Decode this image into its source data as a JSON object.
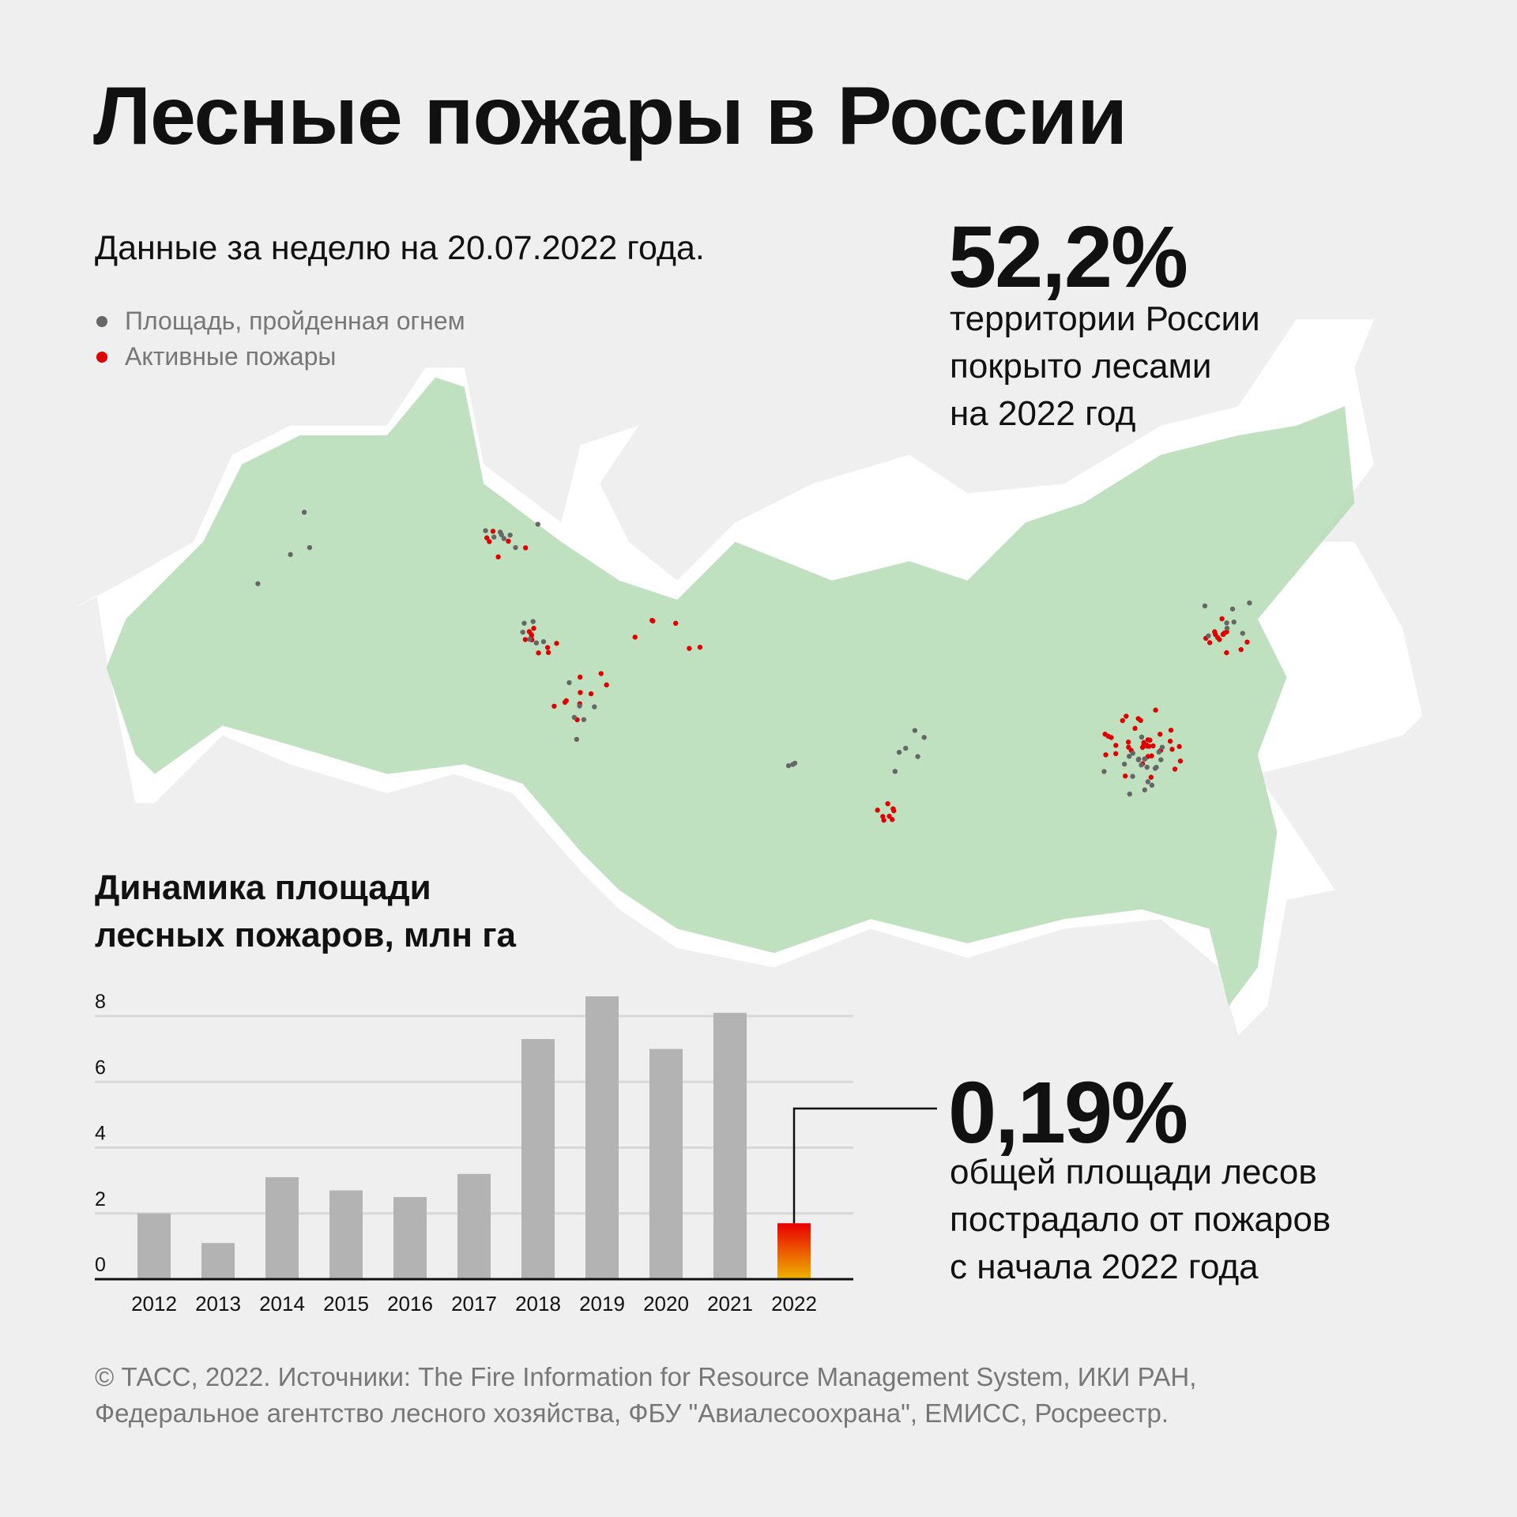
{
  "title": "Лесные пожары в России",
  "subtitle": "Данные за неделю на 20.07.2022 года.",
  "legend": [
    {
      "label": "Площадь, пройденная огнем",
      "color": "#666666"
    },
    {
      "label": "Активные пожары",
      "color": "#e00000"
    }
  ],
  "forest_stat": {
    "value": "52,2%",
    "lines": [
      "территории России",
      "покрыто лесами",
      "на 2022 год"
    ]
  },
  "fire_stat": {
    "value": "0,19%",
    "lines": [
      "общей площади лесов",
      "пострадало от пожаров",
      "с начала 2022 года"
    ]
  },
  "colors": {
    "forest": "#b4dcb4",
    "bar": "#b3b3b3",
    "highlight_top": "#e80000",
    "highlight_bottom": "#f0b400"
  },
  "chart_data": {
    "type": "bar",
    "title": "Динамика площади лесных пожаров, млн га",
    "title_lines": [
      "Динамика площади",
      "лесных пожаров, млн га"
    ],
    "categories": [
      "2012",
      "2013",
      "2014",
      "2015",
      "2016",
      "2017",
      "2018",
      "2019",
      "2020",
      "2021",
      "2022"
    ],
    "values": [
      2.0,
      1.1,
      3.1,
      2.7,
      2.5,
      3.2,
      7.3,
      8.6,
      7.0,
      8.1,
      1.7
    ],
    "highlight": "2022",
    "yticks": [
      0,
      2,
      4,
      6,
      8
    ],
    "ylim": [
      0,
      8.6
    ],
    "grid": true,
    "xlabel": "",
    "ylabel": ""
  },
  "footer": [
    "© ТАСС, 2022. Источники: The Fire Information for Resource Management System, ИКИ РАН,",
    "Федеральное агентство лесного хозяйства, ФБУ \"Авиалесоохрана\", ЕМИСС, Росреестр."
  ]
}
